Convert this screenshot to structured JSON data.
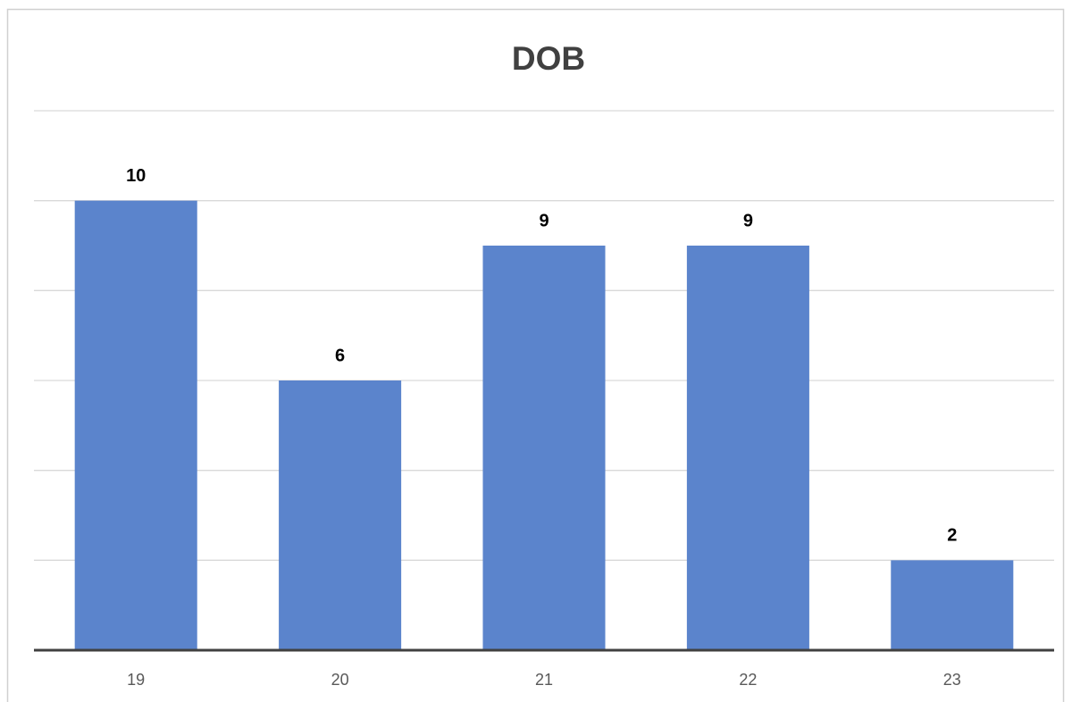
{
  "chart_data": {
    "type": "bar",
    "title": "DOB",
    "categories": [
      "19",
      "20",
      "21",
      "22",
      "23"
    ],
    "values": [
      10,
      6,
      9,
      9,
      2
    ],
    "color": "#5b84cc",
    "ylim": [
      0,
      12
    ],
    "yticks": [
      0,
      2,
      4,
      6,
      8,
      10,
      12
    ],
    "grid": true
  }
}
